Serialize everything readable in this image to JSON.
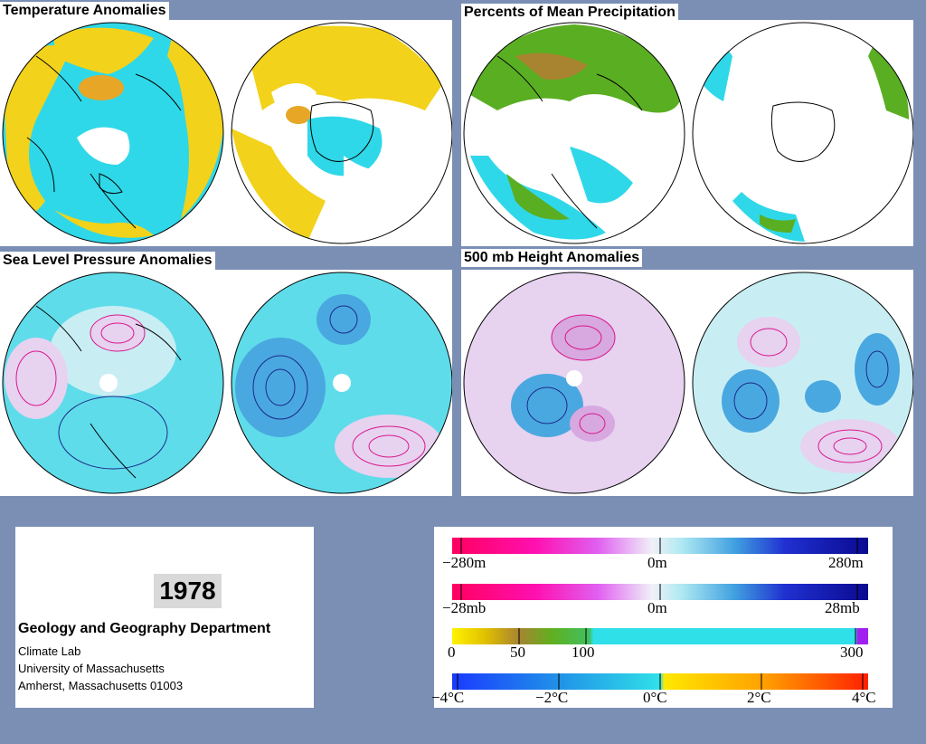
{
  "panels": {
    "temperature": {
      "title": "Temperature Anomalies"
    },
    "precipitation": {
      "title": "Percents of Mean Precipitation"
    },
    "slp": {
      "title": "Sea Level Pressure Anomalies"
    },
    "height500": {
      "title": "500 mb Height Anomalies"
    }
  },
  "info": {
    "year": "1978",
    "department": "Geology and Geography Department",
    "lines": [
      "Climate Lab",
      "University of Massachusetts",
      "Amherst, Massachusetts 01003"
    ]
  },
  "legend": {
    "height_scale": {
      "min": "−280m",
      "mid": "0m",
      "max": "280m"
    },
    "pressure_scale": {
      "min": "−28mb",
      "mid": "0m",
      "max": "28mb"
    },
    "precip_scale": {
      "ticks": [
        "0",
        "50",
        "100",
        "300"
      ]
    },
    "temp_scale": {
      "ticks": [
        "−4°C",
        "−2°C",
        "0°C",
        "2°C",
        "4°C"
      ]
    }
  },
  "colors": {
    "background": "#7b8fb5",
    "warm_yellow": "#f2d21a",
    "cool_cyan": "#2fd8e8",
    "precip_green": "#5aae22",
    "negative_magenta": "#ff0a8a",
    "positive_navy": "#0a0a9a"
  }
}
